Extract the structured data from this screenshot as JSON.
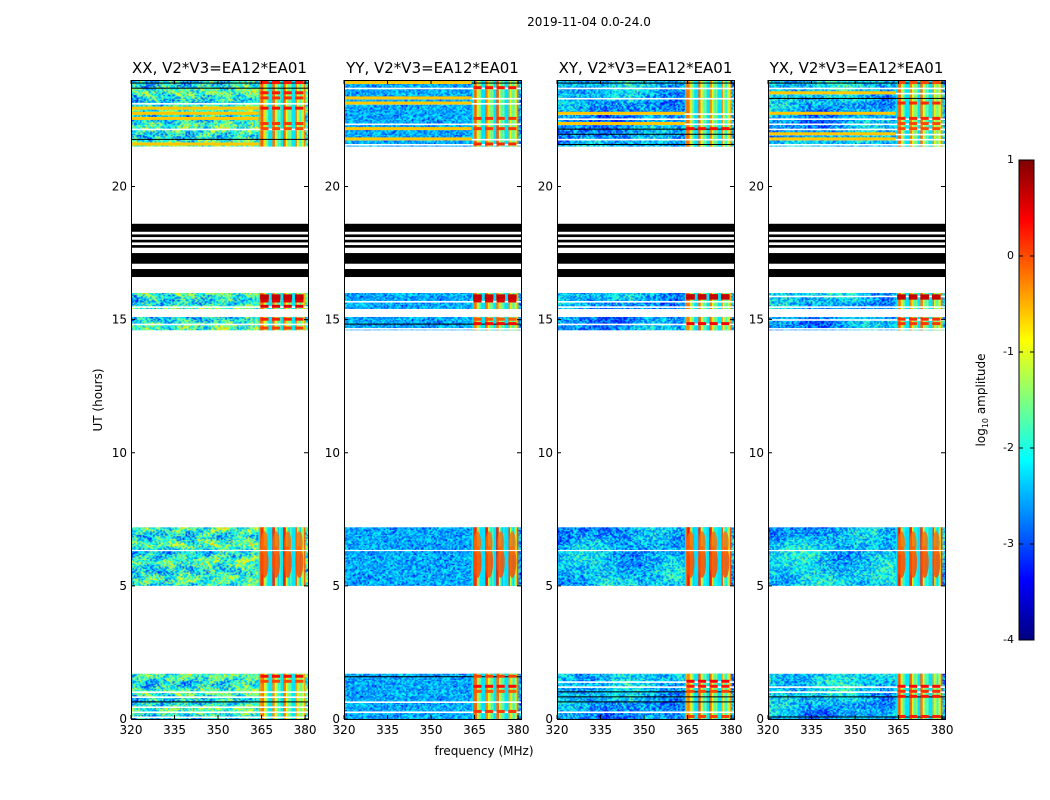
{
  "chart_data": {
    "type": "heatmap",
    "suptitle": "2019-11-04 0.0-24.0",
    "xlabel": "frequency (MHz)",
    "ylabel": "UT (hours)",
    "xlim": [
      320,
      381
    ],
    "ylim": [
      0,
      24
    ],
    "xticks": [
      320,
      335,
      350,
      365,
      380
    ],
    "yticks": [
      0,
      5,
      10,
      15,
      20
    ],
    "panels": [
      {
        "title": "XX, V2*V3=EA12*EA01",
        "texture": "ripples",
        "baseline": [
          0.38,
          0.18
        ]
      },
      {
        "title": "YY, V2*V3=EA12*EA01",
        "texture": "speckle",
        "baseline": [
          0.3,
          0.1
        ]
      },
      {
        "title": "XY, V2*V3=EA12*EA01",
        "texture": "blotches",
        "baseline": [
          0.3,
          0.14
        ]
      },
      {
        "title": "YX, V2*V3=EA12*EA01",
        "texture": "blotches",
        "baseline": [
          0.32,
          0.14
        ]
      }
    ],
    "rfi_band_mhz": [
      364,
      380
    ],
    "rfi_channels_mhz": [
      364,
      368,
      372,
      376
    ],
    "data_segments_hours": [
      {
        "start": 0.0,
        "end": 1.7,
        "style": "striped"
      },
      {
        "start": 5.0,
        "end": 7.2,
        "style": "solid"
      },
      {
        "start": 14.6,
        "end": 15.1,
        "style": "striped"
      },
      {
        "start": 15.4,
        "end": 16.0,
        "style": "striped"
      },
      {
        "start": 21.5,
        "end": 24.0,
        "style": "striped"
      }
    ],
    "flagged_bars_hours": [
      {
        "start": 16.6,
        "end": 16.9
      },
      {
        "start": 17.1,
        "end": 17.5
      },
      {
        "start": 17.7,
        "end": 17.8
      },
      {
        "start": 17.9,
        "end": 18.0
      },
      {
        "start": 18.1,
        "end": 18.2
      },
      {
        "start": 18.3,
        "end": 18.6
      }
    ],
    "colorbar": {
      "label_main": "log",
      "label_sub": "10",
      "label_tail": " amplitude",
      "min": -4,
      "max": 1,
      "ticks": [
        1,
        0,
        -1,
        -2,
        -3,
        -4
      ],
      "colormap": [
        "#00007f",
        "#0000ff",
        "#007fff",
        "#00ffff",
        "#7fff7f",
        "#ffff00",
        "#ff7f00",
        "#ff0000",
        "#7f0000"
      ]
    }
  }
}
